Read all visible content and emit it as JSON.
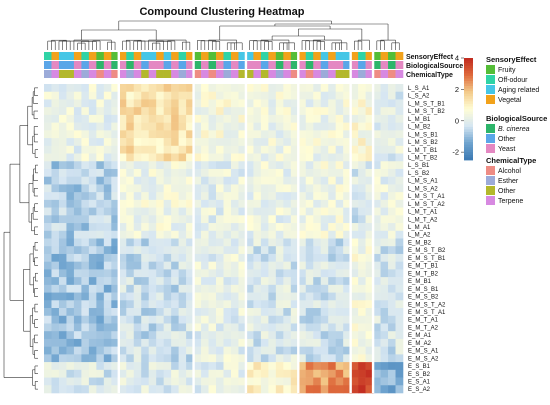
{
  "chart_data": {
    "type": "heatmap",
    "title": "Compound Clustering Heatmap",
    "annotation_tracks": [
      "SensoryEffect",
      "BiologicalSource",
      "ChemicalType"
    ],
    "row_labels": [
      "L_S_A1",
      "L_S_A2",
      "L_M_S_T_B1",
      "L_M_S_T_B2",
      "L_M_B1",
      "L_M_B2",
      "L_M_S_B1",
      "L_M_S_B2",
      "L_M_T_B1",
      "L_M_T_B2",
      "L_S_B1",
      "L_S_B2",
      "L_M_S_A1",
      "L_M_S_A2",
      "L_M_S_T_A1",
      "L_M_S_T_A2",
      "L_M_T_A1",
      "L_M_T_A2",
      "L_M_A1",
      "L_M_A2",
      "E_M_B2",
      "E_M_S_T_B2",
      "E_M_S_T_B1",
      "E_M_T_B1",
      "E_M_T_B2",
      "E_M_B1",
      "E_M_S_B1",
      "E_M_S_B2",
      "E_M_S_T_A2",
      "E_M_S_T_A1",
      "E_M_T_A1",
      "E_M_T_A2",
      "E_M_A1",
      "E_M_A2",
      "E_M_S_A1",
      "E_M_S_A2",
      "E_S_B1",
      "E_S_B2",
      "E_S_A1",
      "E_S_A2"
    ],
    "column_groups": [
      {
        "columns": 10,
        "pattern": [
          0.2,
          -0.7,
          -0.9,
          -0.2
        ]
      },
      {
        "columns": 10,
        "pattern": [
          1.3,
          0.3,
          -0.4,
          -0.1
        ]
      },
      {
        "columns": 7,
        "pattern": [
          0.5,
          0.1,
          0.1,
          0.1
        ]
      },
      {
        "columns": 7,
        "pattern": [
          0.3,
          0.2,
          -0.2,
          0.9
        ]
      },
      {
        "columns": 7,
        "pattern": [
          0.3,
          0.3,
          -0.3,
          2.4
        ]
      },
      {
        "columns": 3,
        "pattern": [
          0.6,
          -0.2,
          0.4,
          3.5
        ]
      },
      {
        "columns": 4,
        "pattern": [
          0.0,
          0.1,
          -0.3,
          -1.2
        ]
      }
    ],
    "color_scale": {
      "min": -2.5,
      "max": 4,
      "ticks": [
        4,
        2,
        0,
        -2
      ],
      "colors": [
        "#3a78b2",
        "#6fa4cf",
        "#d6e6f2",
        "#fffdd6",
        "#f3ca8a",
        "#de6a3c",
        "#c0281e"
      ]
    },
    "legends": [
      {
        "title": "SensoryEffect",
        "items": [
          {
            "label": "Fruity",
            "color": "#54bd37",
            "italic": false
          },
          {
            "label": "Off-odour",
            "color": "#2fd3a6",
            "italic": false
          },
          {
            "label": "Aging related",
            "color": "#45c6e6",
            "italic": false
          },
          {
            "label": "Vegetal",
            "color": "#f2a21b",
            "italic": false
          }
        ]
      },
      {
        "title": "BiologicalSource",
        "items": [
          {
            "label": "B. cinerea",
            "color": "#2db56a",
            "italic": true
          },
          {
            "label": "Other",
            "color": "#5aa6e8",
            "italic": false
          },
          {
            "label": "Yeast",
            "color": "#e488c2",
            "italic": false
          }
        ]
      },
      {
        "title": "ChemicalType",
        "items": [
          {
            "label": "Alcohol",
            "color": "#ee8c84",
            "italic": false
          },
          {
            "label": "Esther",
            "color": "#9cabd9",
            "italic": false
          },
          {
            "label": "Other",
            "color": "#b3b82c",
            "italic": false
          },
          {
            "label": "Terpene",
            "color": "#d789e1",
            "italic": false
          }
        ]
      }
    ]
  }
}
